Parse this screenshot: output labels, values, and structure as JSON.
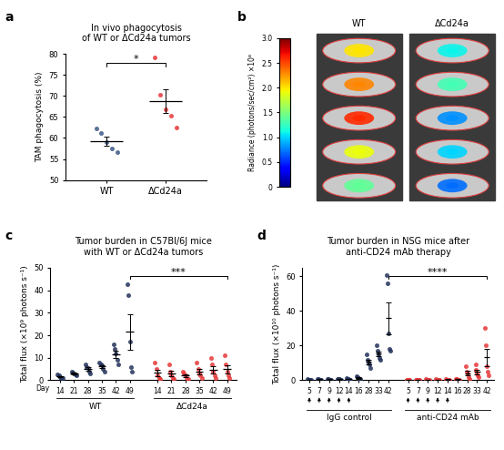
{
  "chart_data": [
    {
      "type": "scatter",
      "panel": "a",
      "title": "In vivo phagocytosis\nof WT or ΔCd24a tumors",
      "ylabel": "TAM phagocytosis (%)",
      "ylim": [
        50,
        80
      ],
      "yticks": [
        50,
        55,
        60,
        65,
        70,
        75,
        80
      ],
      "significance": "*",
      "groups": [
        {
          "name": "WT",
          "color": "#3d5a86",
          "values": [
            [
              62.3,
              61.2,
              59.0,
              57.6,
              56.6
            ]
          ],
          "mean": [
            59.3
          ],
          "sem": [
            1.1
          ]
        },
        {
          "name": "ΔCd24a",
          "color": "#e8393b",
          "values": [
            [
              79.3,
              70.2,
              66.8,
              65.4,
              62.5
            ]
          ],
          "mean": [
            68.8
          ],
          "sem": [
            2.8
          ]
        }
      ]
    },
    {
      "type": "image",
      "panel": "b",
      "colorbar_label": "Radiance (photons/sec/cm²) ×10⁸",
      "clim": [
        0,
        3.0
      ],
      "cticks": [
        0,
        0.5,
        1.0,
        1.5,
        2.0,
        2.5,
        3.0
      ],
      "groups": [
        {
          "name": "WT",
          "signal": [
            2.0,
            2.3,
            2.6,
            1.9,
            1.4
          ]
        },
        {
          "name": "ΔCd24a",
          "signal": [
            1.1,
            1.3,
            0.8,
            1.0,
            0.7
          ]
        }
      ]
    },
    {
      "type": "scatter",
      "panel": "c",
      "title": "Tumor burden in C57Bl/6J mice\nwith WT or ΔCd24a tumors",
      "ylabel": "Total flux (×10⁹ photons s⁻¹)",
      "xlabel": "Day",
      "ylim": [
        0,
        50
      ],
      "yticks": [
        0,
        10,
        20,
        30,
        40,
        50
      ],
      "significance": "***",
      "groups": [
        {
          "name": "WT",
          "color": "#24345c",
          "x": [
            14,
            21,
            28,
            35,
            42,
            49
          ],
          "values": [
            [
              2.5,
              2,
              1.5,
              1,
              0.8
            ],
            [
              4,
              3.5,
              3,
              2.5,
              2
            ],
            [
              7,
              6,
              5.5,
              4,
              3
            ],
            [
              8,
              7,
              6.5,
              5,
              4
            ],
            [
              16,
              14,
              12,
              9,
              7
            ],
            [
              42.5,
              38,
              17,
              6,
              4
            ]
          ],
          "mean": [
            1.6,
            3.0,
            5.1,
            6.1,
            11.6,
            21.5
          ],
          "sem": [
            0.3,
            0.35,
            0.7,
            0.7,
            1.6,
            8.0
          ]
        },
        {
          "name": "ΔCd24a",
          "color": "#e8393b",
          "x": [
            14,
            21,
            28,
            35,
            42,
            49
          ],
          "values": [
            [
              8,
              5,
              2,
              1,
              0.5
            ],
            [
              7,
              4,
              2,
              1,
              0.5
            ],
            [
              4,
              3,
              2,
              1,
              0.5
            ],
            [
              8,
              5,
              3,
              2,
              1
            ],
            [
              10,
              7,
              4,
              2,
              1
            ],
            [
              11,
              7,
              4,
              2,
              1
            ]
          ],
          "mean": [
            3.3,
            2.9,
            2.1,
            3.8,
            4.8,
            5.0
          ],
          "sem": [
            1.4,
            1.2,
            0.6,
            1.2,
            1.6,
            1.8
          ]
        }
      ]
    },
    {
      "type": "scatter",
      "panel": "d",
      "title": "Tumor burden in NSG mice after\nanti-CD24 mAb therapy",
      "ylabel": "Total flux (×10¹⁰ photons s⁻¹)",
      "ylim": [
        0,
        65
      ],
      "yticks": [
        0,
        20,
        40,
        60
      ],
      "significance": "****",
      "treatment_days": [
        5,
        7,
        9,
        12,
        14
      ],
      "groups": [
        {
          "name": "IgG control",
          "color": "#24345c",
          "x": [
            5,
            7,
            9,
            12,
            14,
            16,
            28,
            33,
            42
          ],
          "values": [
            [
              0.6,
              0.4,
              0.3,
              0.2,
              0.1
            ],
            [
              0.7,
              0.5,
              0.3,
              0.2,
              0.1
            ],
            [
              0.8,
              0.5,
              0.4,
              0.2,
              0.1
            ],
            [
              1.0,
              0.7,
              0.5,
              0.3,
              0.2
            ],
            [
              1.2,
              0.9,
              0.6,
              0.4,
              0.2
            ],
            [
              2.5,
              1.8,
              1.2,
              0.8,
              0.5
            ],
            [
              15,
              12,
              10,
              9,
              7
            ],
            [
              20,
              17,
              15,
              13,
              12
            ],
            [
              61,
              56,
              27,
              18,
              17
            ]
          ],
          "mean": [
            0.3,
            0.4,
            0.4,
            0.5,
            0.7,
            1.4,
            10.6,
            15.4,
            35.8
          ],
          "sem": [
            0.1,
            0.1,
            0.1,
            0.2,
            0.2,
            0.4,
            1.4,
            1.4,
            9.0
          ]
        },
        {
          "name": "anti-CD24 mAb",
          "color": "#e8393b",
          "x": [
            5,
            7,
            9,
            12,
            14,
            16,
            28,
            33,
            42
          ],
          "values": [
            [
              0.3,
              0.2,
              0.1,
              0.1,
              0.1
            ],
            [
              0.4,
              0.2,
              0.1,
              0.1,
              0.1
            ],
            [
              0.5,
              0.3,
              0.2,
              0.1,
              0.1
            ],
            [
              0.6,
              0.3,
              0.2,
              0.1,
              0.1
            ],
            [
              0.7,
              0.4,
              0.3,
              0.2,
              0.1
            ],
            [
              1.0,
              0.6,
              0.4,
              0.2,
              0.1
            ],
            [
              8,
              5,
              4,
              2,
              1
            ],
            [
              9,
              6,
              4,
              3,
              2
            ],
            [
              30,
              20,
              8,
              5,
              3
            ]
          ],
          "mean": [
            0.2,
            0.2,
            0.3,
            0.3,
            0.4,
            0.5,
            4.0,
            4.8,
            13.2
          ],
          "sem": [
            0.05,
            0.05,
            0.1,
            0.1,
            0.1,
            0.2,
            1.3,
            1.3,
            5.0
          ]
        }
      ]
    }
  ]
}
